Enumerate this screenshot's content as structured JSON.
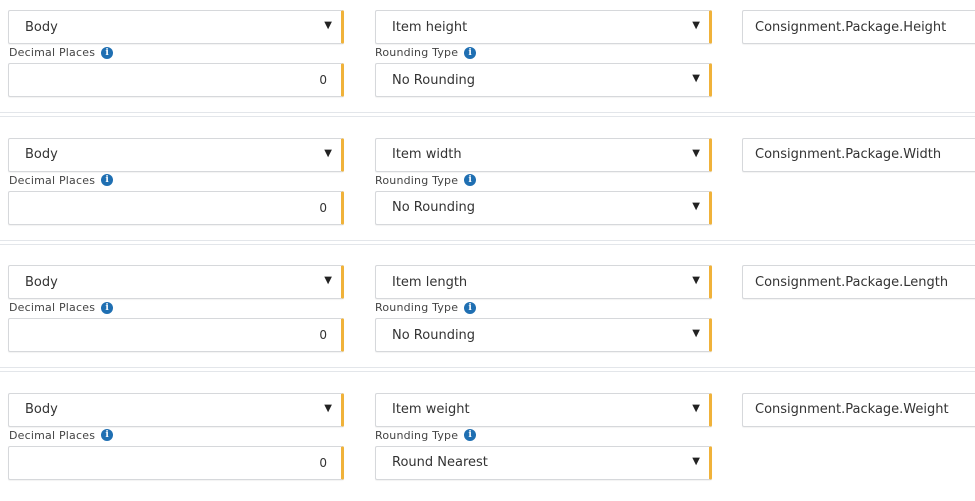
{
  "labels": {
    "decimal_places": "Decimal Places",
    "rounding_type": "Rounding Type"
  },
  "accent_color": "#f0b23a",
  "info_icon": "info-circle-icon",
  "rows": [
    {
      "section": "Body",
      "item": "Item height",
      "decimal_places": "0",
      "rounding": "No Rounding",
      "mapping": "Consignment.Package.Height"
    },
    {
      "section": "Body",
      "item": "Item width",
      "decimal_places": "0",
      "rounding": "No Rounding",
      "mapping": "Consignment.Package.Width"
    },
    {
      "section": "Body",
      "item": "Item length",
      "decimal_places": "0",
      "rounding": "No Rounding",
      "mapping": "Consignment.Package.Length"
    },
    {
      "section": "Body",
      "item": "Item weight",
      "decimal_places": "0",
      "rounding": "Round Nearest",
      "mapping": "Consignment.Package.Weight"
    }
  ]
}
